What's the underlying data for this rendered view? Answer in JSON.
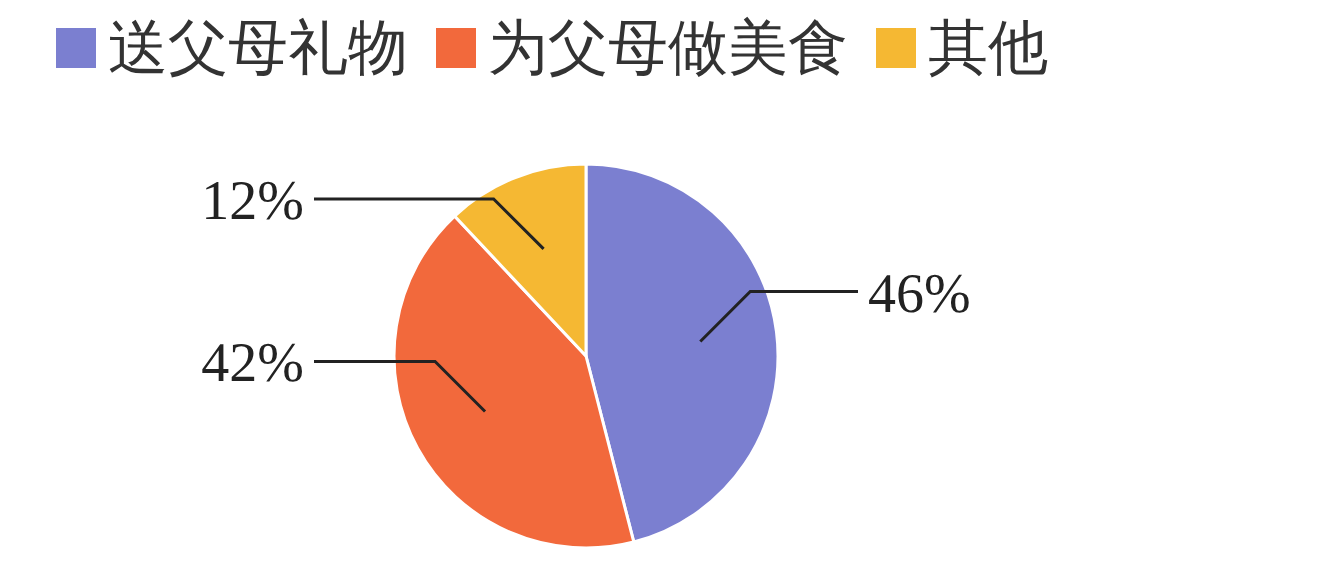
{
  "chart_data": {
    "type": "pie",
    "categories": [
      "送父母礼物",
      "为父母做美食",
      "其他"
    ],
    "values": [
      46,
      42,
      12
    ],
    "colors": [
      "#7b7fd0",
      "#f2693c",
      "#f5b833"
    ],
    "legend": "top",
    "value_labels": [
      "46%",
      "42%",
      "12%"
    ]
  }
}
